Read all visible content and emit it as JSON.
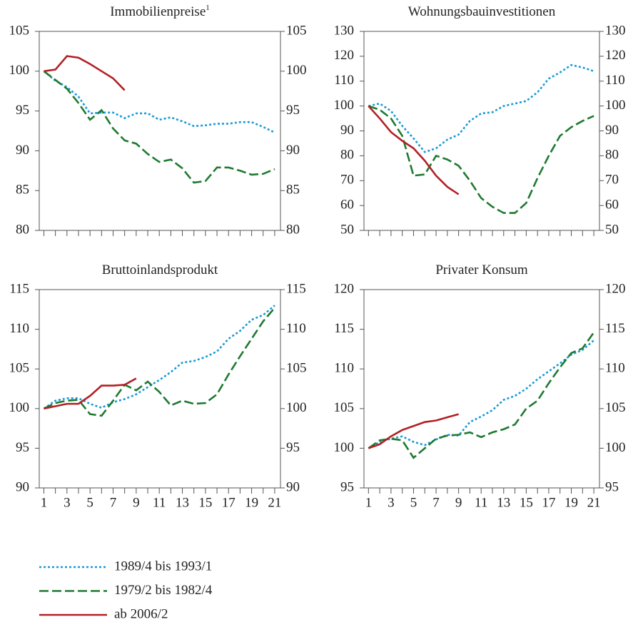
{
  "chart_data": [
    {
      "type": "line",
      "title": "Immobilienpreise",
      "title_footnote": "1",
      "x": [
        1,
        2,
        3,
        4,
        5,
        6,
        7,
        8,
        9,
        10,
        11,
        12,
        13,
        14,
        15,
        16,
        17,
        18,
        19,
        20,
        21
      ],
      "xlim": [
        0.6,
        21.5
      ],
      "ylim": [
        80,
        105
      ],
      "yticks": [
        80,
        85,
        90,
        95,
        100,
        105
      ],
      "series": [
        {
          "name": "1989/4 bis 1993/1",
          "color": "#1a9ad6",
          "line_style": "dotted",
          "values": [
            100,
            98.8,
            98,
            96.8,
            94.7,
            94.8,
            94.8,
            94.1,
            94.7,
            94.7,
            93.9,
            94.2,
            93.7,
            93.1,
            93.2,
            93.4,
            93.4,
            93.6,
            93.6,
            93,
            92.3
          ]
        },
        {
          "name": "1979/2 bis 1982/4",
          "color": "#1e7a30",
          "line_style": "dashed",
          "values": [
            100,
            98.9,
            97.8,
            96,
            93.9,
            95.1,
            92.8,
            91.3,
            90.9,
            89.6,
            88.6,
            88.9,
            87.8,
            86,
            86.2,
            87.9,
            87.9,
            87.5,
            87,
            87.1,
            87.7
          ]
        },
        {
          "name": "ab 2006/2",
          "color": "#b22025",
          "line_style": "solid",
          "values": [
            100,
            100.2,
            101.9,
            101.7,
            100.9,
            100,
            99.1,
            97.6,
            null,
            null,
            null,
            null,
            null,
            null,
            null,
            null,
            null,
            null,
            null,
            null,
            null
          ]
        }
      ]
    },
    {
      "type": "line",
      "title": "Wohnungsbauinvestitionen",
      "x": [
        1,
        2,
        3,
        4,
        5,
        6,
        7,
        8,
        9,
        10,
        11,
        12,
        13,
        14,
        15,
        16,
        17,
        18,
        19,
        20,
        21
      ],
      "xlim": [
        0.6,
        21.5
      ],
      "ylim": [
        50,
        130
      ],
      "yticks": [
        50,
        60,
        70,
        80,
        90,
        100,
        110,
        120,
        130
      ],
      "series": [
        {
          "name": "1989/4 bis 1993/1",
          "color": "#1a9ad6",
          "line_style": "dotted",
          "values": [
            100,
            101,
            98,
            92,
            87,
            81.5,
            83,
            86.5,
            88.5,
            94,
            97,
            97.5,
            100,
            101,
            102,
            105.5,
            111,
            113.5,
            116.5,
            115.5,
            114
          ]
        },
        {
          "name": "1979/2 bis 1982/4",
          "color": "#1e7a30",
          "line_style": "dashed",
          "values": [
            100,
            98.5,
            95,
            88,
            72,
            72.5,
            80,
            78.5,
            76,
            70,
            63,
            59.5,
            57,
            57,
            61,
            71,
            80,
            88,
            91.5,
            94,
            96
          ]
        },
        {
          "name": "ab 2006/2",
          "color": "#b22025",
          "line_style": "solid",
          "values": [
            100,
            95,
            89.5,
            86,
            83,
            78,
            72,
            67.5,
            64.5,
            null,
            null,
            null,
            null,
            null,
            null,
            null,
            null,
            null,
            null,
            null,
            null
          ]
        }
      ]
    },
    {
      "type": "line",
      "title": "Bruttoinlandsprodukt",
      "x": [
        1,
        2,
        3,
        4,
        5,
        6,
        7,
        8,
        9,
        10,
        11,
        12,
        13,
        14,
        15,
        16,
        17,
        18,
        19,
        20,
        21
      ],
      "xlim": [
        0.6,
        21.5
      ],
      "xticks": [
        1,
        3,
        5,
        7,
        9,
        11,
        13,
        15,
        17,
        19,
        21
      ],
      "ylim": [
        90,
        115
      ],
      "yticks": [
        90,
        95,
        100,
        105,
        110,
        115
      ],
      "series": [
        {
          "name": "1989/4 bis 1993/1",
          "color": "#1a9ad6",
          "line_style": "dotted",
          "values": [
            100,
            101,
            101.3,
            101.3,
            100.6,
            100.1,
            100.8,
            101.2,
            101.8,
            102.7,
            103.6,
            104.6,
            105.8,
            106,
            106.5,
            107.2,
            108.8,
            109.8,
            111.2,
            111.8,
            113
          ]
        },
        {
          "name": "1979/2 bis 1982/4",
          "color": "#1e7a30",
          "line_style": "dashed",
          "values": [
            100,
            100.7,
            101,
            101.1,
            99.3,
            99.1,
            101,
            103,
            102.3,
            103.4,
            102.1,
            100.4,
            101,
            100.6,
            100.7,
            101.8,
            104.3,
            106.6,
            108.8,
            111,
            112.7
          ]
        },
        {
          "name": "ab 2006/2",
          "color": "#b22025",
          "line_style": "solid",
          "values": [
            100,
            100.3,
            100.6,
            100.6,
            101.6,
            102.9,
            102.9,
            103,
            103.8,
            null,
            null,
            null,
            null,
            null,
            null,
            null,
            null,
            null,
            null,
            null,
            null
          ]
        }
      ]
    },
    {
      "type": "line",
      "title": "Privater Konsum",
      "x": [
        1,
        2,
        3,
        4,
        5,
        6,
        7,
        8,
        9,
        10,
        11,
        12,
        13,
        14,
        15,
        16,
        17,
        18,
        19,
        20,
        21
      ],
      "xlim": [
        0.6,
        21.5
      ],
      "xticks": [
        1,
        3,
        5,
        7,
        9,
        11,
        13,
        15,
        17,
        19,
        21
      ],
      "ylim": [
        95,
        120
      ],
      "yticks": [
        95,
        100,
        105,
        110,
        115,
        120
      ],
      "series": [
        {
          "name": "1989/4 bis 1993/1",
          "color": "#1a9ad6",
          "line_style": "dotted",
          "values": [
            100,
            100.8,
            101.2,
            101.5,
            100.8,
            100.4,
            101.1,
            101.7,
            101.6,
            103.3,
            104,
            104.8,
            106.1,
            106.6,
            107.5,
            108.7,
            109.7,
            110.7,
            111.8,
            112.4,
            113.6
          ]
        },
        {
          "name": "1979/2 bis 1982/4",
          "color": "#1e7a30",
          "line_style": "dashed",
          "values": [
            100,
            101,
            101.2,
            101,
            98.8,
            100,
            101.2,
            101.6,
            101.7,
            102,
            101.4,
            102,
            102.4,
            103,
            105,
            106,
            108.2,
            110.2,
            112,
            112.6,
            114.6
          ]
        },
        {
          "name": "ab 2006/2",
          "color": "#b22025",
          "line_style": "solid",
          "values": [
            100,
            100.5,
            101.5,
            102.3,
            102.8,
            103.3,
            103.5,
            103.9,
            104.3,
            null,
            null,
            null,
            null,
            null,
            null,
            null,
            null,
            null,
            null,
            null,
            null
          ]
        }
      ]
    }
  ]
}
